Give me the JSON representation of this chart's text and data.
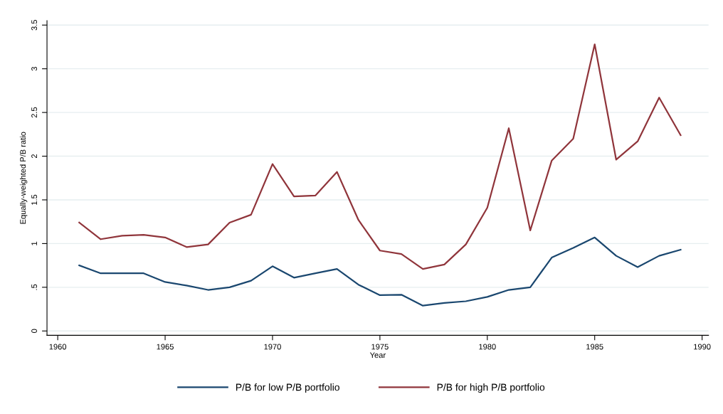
{
  "chart_data": {
    "type": "line",
    "xlabel": "Year",
    "ylabel": "Equally-weighted P/B ratio",
    "x": [
      1961,
      1962,
      1963,
      1964,
      1965,
      1966,
      1967,
      1968,
      1969,
      1970,
      1971,
      1972,
      1973,
      1974,
      1975,
      1976,
      1977,
      1978,
      1979,
      1980,
      1981,
      1982,
      1983,
      1984,
      1985,
      1986,
      1987,
      1988,
      1989
    ],
    "series": [
      {
        "name": "P/B for low P/B portfolio",
        "color": "#1a476f",
        "values": [
          0.75,
          0.66,
          0.66,
          0.66,
          0.56,
          0.52,
          0.47,
          0.5,
          0.575,
          0.74,
          0.61,
          0.66,
          0.71,
          0.53,
          0.41,
          0.415,
          0.29,
          0.32,
          0.34,
          0.39,
          0.47,
          0.5,
          0.84,
          0.95,
          1.07,
          0.86,
          0.73,
          0.86,
          0.93
        ]
      },
      {
        "name": "P/B for high P/B portfolio",
        "color": "#90353b",
        "values": [
          1.24,
          1.05,
          1.09,
          1.1,
          1.07,
          0.96,
          0.99,
          1.24,
          1.33,
          1.91,
          1.54,
          1.55,
          1.82,
          1.27,
          0.92,
          0.88,
          0.71,
          0.76,
          0.99,
          1.41,
          2.32,
          1.15,
          1.95,
          2.2,
          3.28,
          1.96,
          2.17,
          2.67,
          2.24
        ]
      }
    ],
    "xlim": [
      1959.5,
      1990.3
    ],
    "xticks": [
      1960,
      1965,
      1970,
      1975,
      1980,
      1985,
      1990
    ],
    "ylim": [
      -0.05,
      3.55
    ],
    "yticks": [
      0,
      {
        "value": 0.5,
        "label": ".5"
      },
      1,
      1.5,
      2,
      2.5,
      3,
      3.5
    ],
    "grid": "y",
    "legend": "bottom",
    "marker": "none",
    "line_style": "solid"
  }
}
